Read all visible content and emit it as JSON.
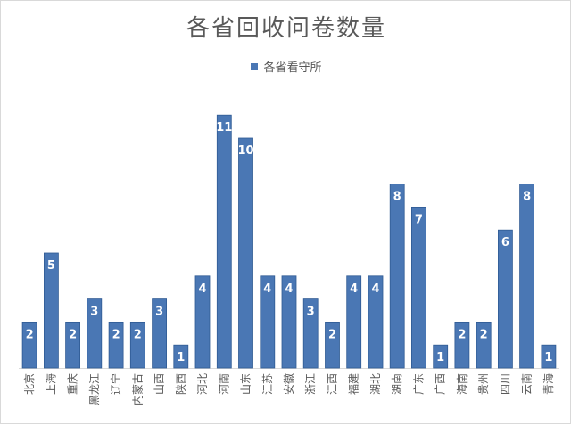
{
  "chart_data": {
    "type": "bar",
    "title": "各省回收问卷数量",
    "legend": {
      "position": "top",
      "entries": [
        "各省看守所"
      ]
    },
    "categories": [
      "北京",
      "上海",
      "重庆",
      "黑龙江",
      "辽宁",
      "内蒙古",
      "山西",
      "陕西",
      "河北",
      "河南",
      "山东",
      "江苏",
      "安徽",
      "浙江",
      "江西",
      "福建",
      "湖北",
      "湖南",
      "广东",
      "广西",
      "海南",
      "贵州",
      "四川",
      "云南",
      "青海"
    ],
    "series": [
      {
        "name": "各省看守所",
        "values": [
          2,
          5,
          2,
          3,
          2,
          2,
          3,
          1,
          4,
          11,
          10,
          4,
          4,
          3,
          2,
          4,
          4,
          8,
          7,
          1,
          2,
          2,
          6,
          8,
          1
        ]
      }
    ],
    "ylim": [
      0,
      11
    ],
    "grid": false,
    "colors": {
      "bar": "#4a77b4",
      "bar_edge": "#2f5a93",
      "label": "#ffffff",
      "text": "#595959"
    }
  }
}
